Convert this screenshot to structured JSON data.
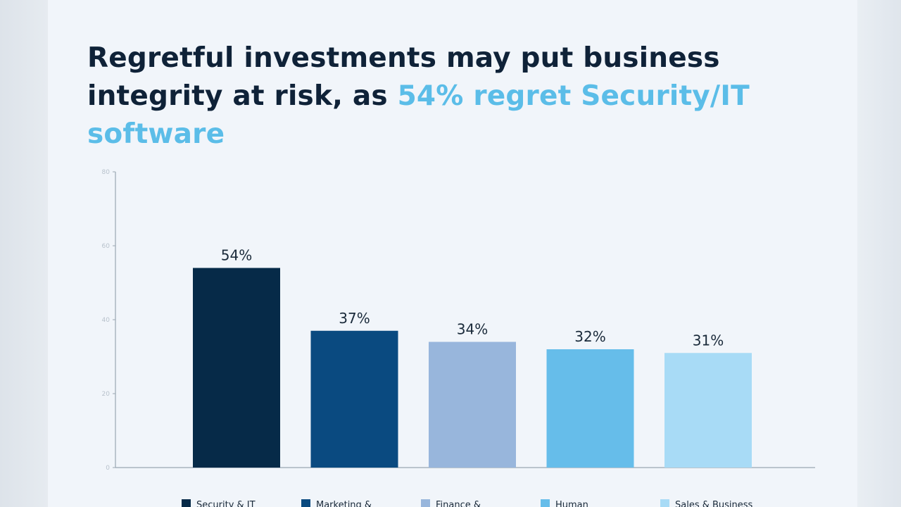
{
  "title": {
    "part1": "Regretful investments may put business integrity at risk, as ",
    "highlight": "54% regret Security/IT software"
  },
  "colors": {
    "title": "#0f2238",
    "highlight": "#5bbde8",
    "axis": "#9aa6b2"
  },
  "chart_data": {
    "type": "bar",
    "categories": [
      "Security & IT",
      "Marketing &",
      "Finance &",
      "Human",
      "Sales & Business"
    ],
    "values": [
      54,
      37,
      34,
      32,
      31
    ],
    "value_labels": [
      "54%",
      "37%",
      "34%",
      "32%",
      "31%"
    ],
    "colors": [
      "#062a48",
      "#0a4a80",
      "#98b6dc",
      "#66bdea",
      "#a8dbf6"
    ],
    "ylim": [
      0,
      80
    ],
    "yticks": [
      0,
      20,
      40,
      60,
      80
    ],
    "grid": false,
    "legend": "bottom",
    "xlabel": "",
    "ylabel": ""
  }
}
